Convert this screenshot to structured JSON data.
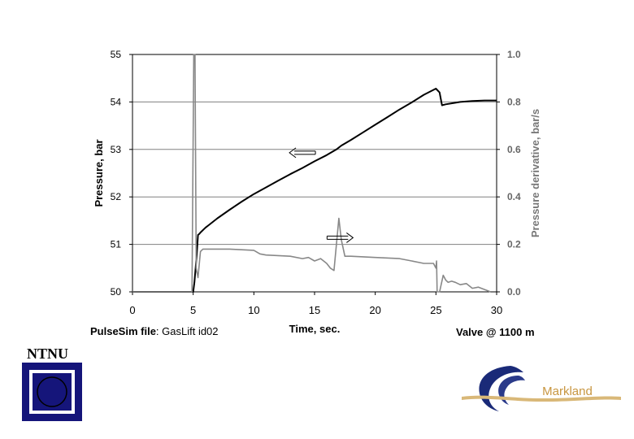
{
  "chart_data": {
    "type": "line",
    "title": "",
    "xlabel": "Time, sec.",
    "ylabel_left": "Pressure, bar",
    "ylabel_right": "Pressure derivative, bar/s",
    "xlim": [
      0,
      30
    ],
    "ylim_left": [
      50,
      55
    ],
    "ylim_right": [
      0.0,
      1.0
    ],
    "x_ticks": [
      "0",
      "5",
      "10",
      "15",
      "20",
      "25",
      "30"
    ],
    "y_ticks_left": [
      "50",
      "51",
      "52",
      "53",
      "54",
      "55"
    ],
    "y_ticks_right": [
      "0.0",
      "0.2",
      "0.4",
      "0.6",
      "0.8",
      "1.0"
    ],
    "grid": true,
    "series": [
      {
        "axis": "left",
        "color": "#000000",
        "x": [
          0,
          5,
          5.1,
          5.3,
          5.4,
          5.5,
          5.6,
          6,
          7,
          8,
          9,
          10,
          11,
          12,
          13,
          14,
          15,
          16,
          16.8,
          17.2,
          18,
          19,
          20,
          21,
          22,
          23,
          24,
          25,
          25.3,
          25.5,
          25.8,
          26.5,
          27,
          28,
          29,
          30
        ],
        "y": [
          50,
          50,
          50.2,
          50.8,
          51.2,
          51.22,
          51.25,
          51.35,
          51.55,
          51.73,
          51.9,
          52.06,
          52.2,
          52.34,
          52.48,
          52.61,
          52.75,
          52.88,
          53.0,
          53.08,
          53.2,
          53.36,
          53.52,
          53.68,
          53.84,
          53.99,
          54.15,
          54.28,
          54.2,
          53.93,
          53.95,
          53.98,
          54.0,
          54.02,
          54.03,
          54.03
        ]
      },
      {
        "axis": "right",
        "color": "#888888",
        "x": [
          0,
          4.9,
          5.05,
          5.15,
          5.25,
          5.4,
          5.6,
          5.8,
          6,
          8,
          10,
          10.5,
          11,
          13,
          14,
          14.5,
          15,
          15.5,
          16,
          16.3,
          16.6,
          16.8,
          17.0,
          17.2,
          17.5,
          18,
          20,
          22,
          23,
          24,
          24.8,
          25.0,
          25.05,
          25.1,
          25.3,
          25.6,
          25.8,
          26,
          26.3,
          26.6,
          27,
          27.5,
          28,
          28.5,
          29,
          29.5
        ],
        "y": [
          0,
          0,
          1.0,
          1.0,
          0.1,
          0.06,
          0.17,
          0.18,
          0.18,
          0.18,
          0.175,
          0.16,
          0.155,
          0.15,
          0.14,
          0.145,
          0.13,
          0.14,
          0.12,
          0.1,
          0.09,
          0.2,
          0.31,
          0.22,
          0.15,
          0.15,
          0.145,
          0.14,
          0.13,
          0.12,
          0.12,
          0.1,
          0.13,
          0.0,
          0.0,
          0.07,
          0.05,
          0.04,
          0.045,
          0.04,
          0.03,
          0.035,
          0.015,
          0.02,
          0.01,
          0.0
        ]
      }
    ],
    "annotations": [
      {
        "text": "left-arrow",
        "x": 14.0,
        "y_axis": "left",
        "y": 52.93
      },
      {
        "text": "right-arrow",
        "x": 17.1,
        "y_axis": "left",
        "y": 51.14
      }
    ]
  },
  "footer": {
    "file_label": "PulseSim file",
    "file_value": ": GasLift id02",
    "valve_label": "Valve @ 1100 m"
  },
  "logos": {
    "ntnu": "NTNU",
    "markland": "Markland"
  }
}
